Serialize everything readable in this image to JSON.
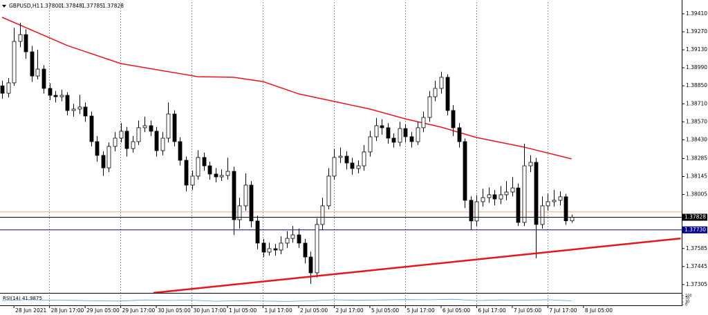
{
  "chart_data": {
    "type": "candlestick",
    "title": "GBPUSD,H1",
    "ohlc_labels": [
      "1.37800",
      "1.37848",
      "1.37785",
      "1.37828"
    ],
    "up_color": "#ffffff",
    "down_color": "#000000",
    "wick_color": "#000000",
    "grid": true,
    "xlim": [
      -0.35,
      114.45
    ],
    "ylim": [
      1.3724,
      1.39501
    ],
    "yticks": [
      {
        "value": 1.3941,
        "label": "1.39410"
      },
      {
        "value": 1.3927,
        "label": "1.39270"
      },
      {
        "value": 1.3913,
        "label": "1.39130"
      },
      {
        "value": 1.3899,
        "label": "1.38990"
      },
      {
        "value": 1.3885,
        "label": "1.38850"
      },
      {
        "value": 1.3871,
        "label": "1.38710"
      },
      {
        "value": 1.3857,
        "label": "1.38570"
      },
      {
        "value": 1.3843,
        "label": "1.38430"
      },
      {
        "value": 1.38285,
        "label": "1.38285"
      },
      {
        "value": 1.38145,
        "label": "1.38145"
      },
      {
        "value": 1.38005,
        "label": "1.38005"
      },
      {
        "value": 1.37585,
        "label": "1.37585"
      },
      {
        "value": 1.37445,
        "label": "1.37445"
      },
      {
        "value": 1.37305,
        "label": "1.37305"
      }
    ],
    "xticks": [
      {
        "value": 2,
        "label": "28 Jun 2021"
      },
      {
        "value": 8,
        "label": "28 Jun 17:00"
      },
      {
        "value": 14,
        "label": "29 Jun 05:00"
      },
      {
        "value": 20,
        "label": "29 Jun 17:00"
      },
      {
        "value": 26,
        "label": "30 Jun 05:00"
      },
      {
        "value": 32,
        "label": "30 Jun 17:00"
      },
      {
        "value": 38,
        "label": "1 Jul 05:00"
      },
      {
        "value": 44,
        "label": "1 Jul 17:00"
      },
      {
        "value": 50,
        "label": "2 Jul 05:00"
      },
      {
        "value": 56,
        "label": "2 Jul 17:00"
      },
      {
        "value": 62,
        "label": "5 Jul 05:00"
      },
      {
        "value": 68,
        "label": "5 Jul 17:00"
      },
      {
        "value": 74,
        "label": "6 Jul 05:00"
      },
      {
        "value": 80,
        "label": "6 Jul 17:00"
      },
      {
        "value": 86,
        "label": "7 Jul 05:00"
      },
      {
        "value": 92,
        "label": "7 Jul 17:00"
      },
      {
        "value": 98,
        "label": "8 Jul 05:00"
      }
    ],
    "open": [
      1.3885,
      1.38792,
      1.38873,
      1.39195,
      1.39248,
      1.39114,
      1.38926,
      1.3898,
      1.3883,
      1.38776,
      1.38765,
      1.38776,
      1.38658,
      1.38669,
      1.38685,
      1.38615,
      1.38416,
      1.38309,
      1.38212,
      1.38379,
      1.38443,
      1.38497,
      1.38362,
      1.38416,
      1.38524,
      1.3854,
      1.38497,
      1.38346,
      1.38443,
      1.38631,
      1.38416,
      1.38271,
      1.38078,
      1.38148,
      1.38293,
      1.38228,
      1.38164,
      1.38142,
      1.38153,
      1.38185,
      1.37809,
      1.37917,
      1.38078,
      1.37799,
      1.37627,
      1.37557,
      1.37584,
      1.37573,
      1.37627,
      1.37664,
      1.37691,
      1.37627,
      1.37519,
      1.37396,
      1.37772,
      1.37917,
      1.38148,
      1.38293,
      1.38303,
      1.3825,
      1.38207,
      1.38228,
      1.38336,
      1.38454,
      1.3854,
      1.38524,
      1.38443,
      1.38411,
      1.38518,
      1.38454,
      1.38416,
      1.38524,
      1.38604,
      1.38765,
      1.3883,
      1.38916,
      1.38658,
      1.38524,
      1.38416,
      1.3796,
      1.37799,
      1.37949,
      1.37981,
      1.38003,
      1.3797,
      1.38003,
      1.38024,
      1.38056,
      1.37788,
      1.38228,
      1.38255,
      1.37772,
      1.37917,
      1.37949,
      1.3796,
      1.37987,
      1.378
    ],
    "high": [
      1.3889,
      1.3891,
      1.393,
      1.3934,
      1.3929,
      1.3916,
      1.3913,
      1.3901,
      1.3887,
      1.3881,
      1.3882,
      1.388,
      1.3871,
      1.3878,
      1.3872,
      1.3865,
      1.3846,
      1.3834,
      1.3841,
      1.3849,
      1.3856,
      1.3853,
      1.3846,
      1.3858,
      1.3861,
      1.3858,
      1.3853,
      1.3849,
      1.3872,
      1.3866,
      1.3845,
      1.383,
      1.3819,
      1.3835,
      1.3833,
      1.3826,
      1.3821,
      1.382,
      1.3829,
      1.3822,
      1.3798,
      1.3817,
      1.3811,
      1.3784,
      1.3766,
      1.3763,
      1.3762,
      1.3768,
      1.3772,
      1.3776,
      1.3774,
      1.3766,
      1.3756,
      1.3782,
      1.3798,
      1.3821,
      1.3836,
      1.3837,
      1.3834,
      1.3829,
      1.3827,
      1.3839,
      1.385,
      1.386,
      1.3859,
      1.3856,
      1.3848,
      1.3857,
      1.3855,
      1.3849,
      1.3857,
      1.3865,
      1.3881,
      1.3889,
      1.3896,
      1.3894,
      1.387,
      1.3856,
      1.3844,
      1.3799,
      1.38,
      1.3805,
      1.3806,
      1.3804,
      1.3807,
      1.3811,
      1.3814,
      1.3809,
      1.384,
      1.3831,
      1.3829,
      1.3799,
      1.3801,
      1.3804,
      1.3803,
      1.3801,
      1.37848
    ],
    "low": [
      1.3875,
      1.3876,
      1.3885,
      1.3915,
      1.3906,
      1.3888,
      1.389,
      1.3879,
      1.3874,
      1.3872,
      1.3873,
      1.3862,
      1.3861,
      1.3863,
      1.3857,
      1.3838,
      1.3826,
      1.3815,
      1.3818,
      1.3834,
      1.3841,
      1.383,
      1.3833,
      1.3839,
      1.3849,
      1.3846,
      1.383,
      1.3831,
      1.3841,
      1.3838,
      1.3823,
      1.3803,
      1.3804,
      1.3812,
      1.3819,
      1.3812,
      1.381,
      1.3811,
      1.3812,
      1.3769,
      1.3774,
      1.3788,
      1.3775,
      1.3758,
      1.3752,
      1.3753,
      1.3753,
      1.3754,
      1.3759,
      1.3763,
      1.3759,
      1.3747,
      1.3731,
      1.3736,
      1.3773,
      1.3789,
      1.3812,
      1.3825,
      1.382,
      1.3816,
      1.3817,
      1.3819,
      1.383,
      1.3842,
      1.3847,
      1.384,
      1.3837,
      1.3838,
      1.3841,
      1.3837,
      1.3839,
      1.3849,
      1.3857,
      1.3873,
      1.3879,
      1.3862,
      1.3846,
      1.3837,
      1.379,
      1.3773,
      1.3776,
      1.3791,
      1.3794,
      1.3792,
      1.3793,
      1.3796,
      1.3799,
      1.3776,
      1.3776,
      1.3818,
      1.3751,
      1.3774,
      1.3788,
      1.3791,
      1.3792,
      1.3777,
      1.37785
    ],
    "close": [
      1.38792,
      1.38873,
      1.39195,
      1.39248,
      1.39114,
      1.38926,
      1.3898,
      1.3883,
      1.38776,
      1.38765,
      1.38776,
      1.38658,
      1.38669,
      1.38685,
      1.38615,
      1.38416,
      1.38309,
      1.38212,
      1.38379,
      1.38443,
      1.38497,
      1.38362,
      1.38416,
      1.38524,
      1.3854,
      1.38497,
      1.38346,
      1.38443,
      1.38631,
      1.38416,
      1.38271,
      1.38078,
      1.38148,
      1.38293,
      1.38228,
      1.38164,
      1.38142,
      1.38153,
      1.38185,
      1.37809,
      1.37917,
      1.38078,
      1.37799,
      1.37627,
      1.37557,
      1.37584,
      1.37573,
      1.37627,
      1.37664,
      1.37691,
      1.37627,
      1.37519,
      1.37396,
      1.37772,
      1.37917,
      1.38148,
      1.38293,
      1.38303,
      1.3825,
      1.38207,
      1.38228,
      1.38336,
      1.38454,
      1.3854,
      1.38524,
      1.38443,
      1.38411,
      1.38518,
      1.38454,
      1.38416,
      1.38524,
      1.38604,
      1.38765,
      1.3883,
      1.38916,
      1.38658,
      1.38524,
      1.38416,
      1.3796,
      1.37799,
      1.37949,
      1.37981,
      1.38003,
      1.3797,
      1.38003,
      1.38024,
      1.38056,
      1.37788,
      1.38228,
      1.38255,
      1.37772,
      1.37917,
      1.37949,
      1.3796,
      1.37987,
      1.378,
      1.37828
    ],
    "moving_average": {
      "color": "#e8141c",
      "x": [
        0,
        11,
        20,
        33,
        39,
        44,
        50,
        56,
        62,
        68,
        74,
        80,
        88,
        96
      ],
      "values": [
        1.39383,
        1.39163,
        1.39023,
        1.38921,
        1.38916,
        1.38883,
        1.38787,
        1.38728,
        1.38669,
        1.38593,
        1.38529,
        1.38448,
        1.38373,
        1.38282
      ]
    },
    "trendline": {
      "color": "#e8141c",
      "x": [
        25.5,
        114.4
      ],
      "values": [
        1.3724,
        1.37664
      ]
    },
    "level": {
      "value": 1.3773,
      "label": "1.37730",
      "color": "#00008b"
    },
    "bid": {
      "value": 1.37828,
      "label": "1.37828",
      "color": "#000000"
    },
    "ask": {
      "value": 1.3787,
      "color": "#f4a582"
    },
    "rsi": {
      "label": "RSI(14) 41.9875",
      "color": "#4d9fe8",
      "ylim": [
        0,
        100
      ],
      "yticks": [
        100,
        70,
        30,
        0
      ],
      "x": [
        0,
        4,
        8,
        12,
        16,
        20,
        24,
        28,
        32,
        36,
        40,
        44,
        48,
        52,
        56,
        60,
        64,
        68,
        72,
        76,
        80,
        84,
        88,
        92,
        96
      ],
      "values": [
        45,
        55,
        50,
        48,
        42,
        40,
        52,
        47,
        50,
        38,
        44,
        40,
        36,
        42,
        55,
        48,
        52,
        56,
        54,
        60,
        45,
        52,
        50,
        55,
        42
      ]
    }
  }
}
